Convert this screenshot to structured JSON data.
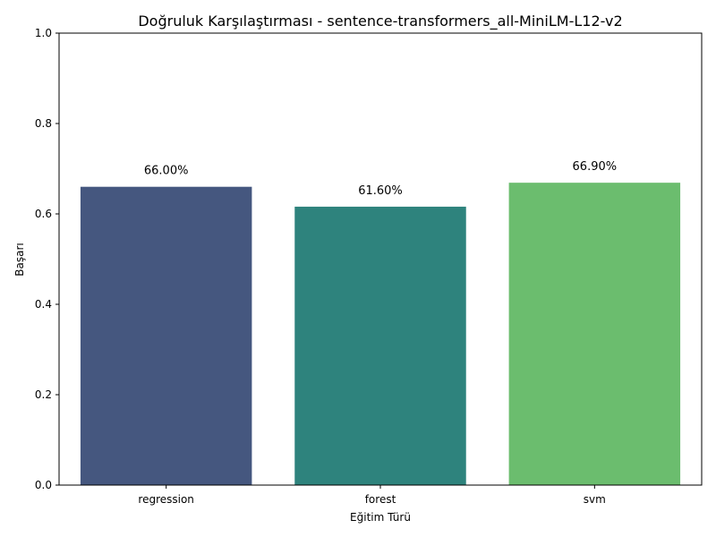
{
  "chart_data": {
    "type": "bar",
    "title": "Doğruluk Karşılaştırması - sentence-transformers_all-MiniLM-L12-v2",
    "xlabel": "Eğitim Türü",
    "ylabel": "Başarı",
    "categories": [
      "regression",
      "forest",
      "svm"
    ],
    "values": [
      0.66,
      0.616,
      0.669
    ],
    "data_labels": [
      "66.00%",
      "61.60%",
      "66.90%"
    ],
    "colors": [
      "#45577f",
      "#2e837d",
      "#6bbd6e"
    ],
    "ylim": [
      0,
      1.0
    ],
    "yticks": [
      0.0,
      0.2,
      0.4,
      0.6,
      0.8,
      1.0
    ],
    "ytick_labels": [
      "0.0",
      "0.2",
      "0.4",
      "0.6",
      "0.8",
      "1.0"
    ],
    "grid": false,
    "legend": "none"
  }
}
